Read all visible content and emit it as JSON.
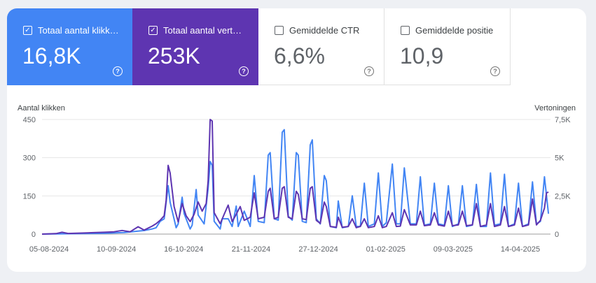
{
  "metrics": [
    {
      "label": "Totaal aantal klikk…",
      "value": "16,8K",
      "checked": true,
      "color": "#4285f4"
    },
    {
      "label": "Totaal aantal vert…",
      "value": "253K",
      "checked": true,
      "color": "#5e35b1"
    },
    {
      "label": "Gemiddelde CTR",
      "value": "6,6%",
      "checked": false,
      "color": "#ffffff"
    },
    {
      "label": "Gemiddelde positie",
      "value": "10,9",
      "checked": false,
      "color": "#ffffff"
    }
  ],
  "help_glyph": "?",
  "check_glyph": "✓",
  "chart_data": {
    "type": "line",
    "xlabel": "",
    "ylabel_left": "Aantal klikken",
    "ylabel_right": "Vertoningen",
    "left_axis": {
      "range": [
        0,
        450
      ],
      "ticks": [
        0,
        150,
        300,
        450
      ],
      "tick_labels": [
        "0",
        "150",
        "300",
        "450"
      ]
    },
    "right_axis": {
      "range": [
        0,
        7500
      ],
      "ticks": [
        0,
        2500,
        5000,
        7500
      ],
      "tick_labels": [
        "0",
        "2,5K",
        "5K",
        "7,5K"
      ]
    },
    "x_ticks": [
      "05-08-2024",
      "10-09-2024",
      "16-10-2024",
      "21-11-2024",
      "27-12-2024",
      "01-02-2025",
      "09-03-2025",
      "14-04-2025"
    ],
    "x_range": [
      "2024-08-05",
      "2025-04-16"
    ],
    "grid": true,
    "series": [
      {
        "name": "Totaal aantal klikken",
        "axis": "left",
        "color": "#4285f4",
        "points": [
          [
            "2024-08-05",
            0
          ],
          [
            "2024-08-15",
            1
          ],
          [
            "2024-08-25",
            2
          ],
          [
            "2024-09-05",
            3
          ],
          [
            "2024-09-15",
            6
          ],
          [
            "2024-09-25",
            14
          ],
          [
            "2024-09-29",
            20
          ],
          [
            "2024-10-01",
            25
          ],
          [
            "2024-10-03",
            50
          ],
          [
            "2024-10-05",
            60
          ],
          [
            "2024-10-07",
            190
          ],
          [
            "2024-10-08",
            125
          ],
          [
            "2024-10-11",
            25
          ],
          [
            "2024-10-12",
            40
          ],
          [
            "2024-10-14",
            145
          ],
          [
            "2024-10-15",
            80
          ],
          [
            "2024-10-18",
            20
          ],
          [
            "2024-10-19",
            35
          ],
          [
            "2024-10-21",
            175
          ],
          [
            "2024-10-22",
            75
          ],
          [
            "2024-10-25",
            40
          ],
          [
            "2024-10-27",
            180
          ],
          [
            "2024-10-28",
            285
          ],
          [
            "2024-10-29",
            270
          ],
          [
            "2024-10-30",
            50
          ],
          [
            "2024-11-02",
            20
          ],
          [
            "2024-11-03",
            60
          ],
          [
            "2024-11-06",
            60
          ],
          [
            "2024-11-08",
            30
          ],
          [
            "2024-11-10",
            110
          ],
          [
            "2024-11-11",
            30
          ],
          [
            "2024-11-14",
            90
          ],
          [
            "2024-11-17",
            30
          ],
          [
            "2024-11-19",
            230
          ],
          [
            "2024-11-21",
            50
          ],
          [
            "2024-11-24",
            45
          ],
          [
            "2024-11-26",
            310
          ],
          [
            "2024-11-27",
            320
          ],
          [
            "2024-11-29",
            60
          ],
          [
            "2024-12-01",
            55
          ],
          [
            "2024-12-03",
            400
          ],
          [
            "2024-12-04",
            410
          ],
          [
            "2024-12-06",
            70
          ],
          [
            "2024-12-08",
            55
          ],
          [
            "2024-12-10",
            320
          ],
          [
            "2024-12-11",
            310
          ],
          [
            "2024-12-13",
            50
          ],
          [
            "2024-12-15",
            45
          ],
          [
            "2024-12-17",
            350
          ],
          [
            "2024-12-18",
            370
          ],
          [
            "2024-12-20",
            60
          ],
          [
            "2024-12-22",
            40
          ],
          [
            "2024-12-24",
            230
          ],
          [
            "2024-12-25",
            210
          ],
          [
            "2024-12-27",
            30
          ],
          [
            "2024-12-30",
            25
          ],
          [
            "2024-12-31",
            130
          ],
          [
            "2025-01-02",
            25
          ],
          [
            "2025-01-05",
            30
          ],
          [
            "2025-01-07",
            150
          ],
          [
            "2025-01-09",
            30
          ],
          [
            "2025-01-11",
            30
          ],
          [
            "2025-01-13",
            200
          ],
          [
            "2025-01-15",
            30
          ],
          [
            "2025-01-18",
            40
          ],
          [
            "2025-01-20",
            240
          ],
          [
            "2025-01-22",
            30
          ],
          [
            "2025-01-24",
            45
          ],
          [
            "2025-01-27",
            275
          ],
          [
            "2025-01-29",
            40
          ],
          [
            "2025-01-31",
            40
          ],
          [
            "2025-02-02",
            260
          ],
          [
            "2025-02-05",
            40
          ],
          [
            "2025-02-08",
            40
          ],
          [
            "2025-02-10",
            225
          ],
          [
            "2025-02-12",
            35
          ],
          [
            "2025-02-15",
            40
          ],
          [
            "2025-02-17",
            200
          ],
          [
            "2025-02-19",
            40
          ],
          [
            "2025-02-22",
            35
          ],
          [
            "2025-02-24",
            190
          ],
          [
            "2025-02-26",
            30
          ],
          [
            "2025-03-01",
            40
          ],
          [
            "2025-03-03",
            190
          ],
          [
            "2025-03-05",
            30
          ],
          [
            "2025-03-08",
            35
          ],
          [
            "2025-03-10",
            195
          ],
          [
            "2025-03-12",
            30
          ],
          [
            "2025-03-15",
            30
          ],
          [
            "2025-03-17",
            240
          ],
          [
            "2025-03-19",
            35
          ],
          [
            "2025-03-22",
            40
          ],
          [
            "2025-03-24",
            235
          ],
          [
            "2025-03-26",
            30
          ],
          [
            "2025-03-29",
            40
          ],
          [
            "2025-03-31",
            200
          ],
          [
            "2025-04-02",
            30
          ],
          [
            "2025-04-05",
            40
          ],
          [
            "2025-04-07",
            205
          ],
          [
            "2025-04-09",
            40
          ],
          [
            "2025-04-11",
            50
          ],
          [
            "2025-04-13",
            225
          ],
          [
            "2025-04-15",
            80
          ]
        ]
      },
      {
        "name": "Totaal aantal vertoningen",
        "axis": "right",
        "color": "#5e35b1",
        "points": [
          [
            "2024-08-05",
            0
          ],
          [
            "2024-08-12",
            30
          ],
          [
            "2024-08-15",
            120
          ],
          [
            "2024-08-18",
            40
          ],
          [
            "2024-08-25",
            70
          ],
          [
            "2024-09-01",
            100
          ],
          [
            "2024-09-05",
            120
          ],
          [
            "2024-09-10",
            150
          ],
          [
            "2024-09-14",
            240
          ],
          [
            "2024-09-18",
            150
          ],
          [
            "2024-09-22",
            480
          ],
          [
            "2024-09-25",
            260
          ],
          [
            "2024-09-29",
            520
          ],
          [
            "2024-10-01",
            680
          ],
          [
            "2024-10-03",
            900
          ],
          [
            "2024-10-05",
            1200
          ],
          [
            "2024-10-06",
            2200
          ],
          [
            "2024-10-07",
            4500
          ],
          [
            "2024-10-08",
            4000
          ],
          [
            "2024-10-10",
            1800
          ],
          [
            "2024-10-12",
            800
          ],
          [
            "2024-10-14",
            2000
          ],
          [
            "2024-10-16",
            1200
          ],
          [
            "2024-10-18",
            820
          ],
          [
            "2024-10-20",
            1300
          ],
          [
            "2024-10-22",
            2100
          ],
          [
            "2024-10-24",
            1500
          ],
          [
            "2024-10-26",
            2000
          ],
          [
            "2024-10-27",
            3500
          ],
          [
            "2024-10-28",
            7500
          ],
          [
            "2024-10-29",
            7400
          ],
          [
            "2024-10-30",
            1400
          ],
          [
            "2024-11-02",
            680
          ],
          [
            "2024-11-04",
            1300
          ],
          [
            "2024-11-06",
            1900
          ],
          [
            "2024-11-08",
            820
          ],
          [
            "2024-11-10",
            1300
          ],
          [
            "2024-11-12",
            1800
          ],
          [
            "2024-11-14",
            900
          ],
          [
            "2024-11-17",
            1100
          ],
          [
            "2024-11-19",
            2700
          ],
          [
            "2024-11-21",
            1000
          ],
          [
            "2024-11-24",
            1100
          ],
          [
            "2024-11-26",
            2800
          ],
          [
            "2024-11-27",
            3000
          ],
          [
            "2024-11-29",
            1000
          ],
          [
            "2024-12-01",
            1100
          ],
          [
            "2024-12-03",
            3000
          ],
          [
            "2024-12-04",
            3100
          ],
          [
            "2024-12-06",
            1100
          ],
          [
            "2024-12-08",
            1000
          ],
          [
            "2024-12-10",
            2800
          ],
          [
            "2024-12-11",
            2600
          ],
          [
            "2024-12-13",
            1000
          ],
          [
            "2024-12-15",
            950
          ],
          [
            "2024-12-17",
            3000
          ],
          [
            "2024-12-18",
            3100
          ],
          [
            "2024-12-20",
            900
          ],
          [
            "2024-12-22",
            700
          ],
          [
            "2024-12-24",
            2100
          ],
          [
            "2024-12-25",
            1800
          ],
          [
            "2024-12-27",
            500
          ],
          [
            "2024-12-30",
            450
          ],
          [
            "2024-12-31",
            1100
          ],
          [
            "2025-01-02",
            450
          ],
          [
            "2025-01-05",
            500
          ],
          [
            "2025-01-07",
            1000
          ],
          [
            "2025-01-09",
            420
          ],
          [
            "2025-01-11",
            500
          ],
          [
            "2025-01-13",
            1000
          ],
          [
            "2025-01-15",
            420
          ],
          [
            "2025-01-18",
            500
          ],
          [
            "2025-01-20",
            1200
          ],
          [
            "2025-01-22",
            420
          ],
          [
            "2025-01-24",
            500
          ],
          [
            "2025-01-27",
            1400
          ],
          [
            "2025-01-29",
            500
          ],
          [
            "2025-01-31",
            520
          ],
          [
            "2025-02-02",
            1600
          ],
          [
            "2025-02-05",
            600
          ],
          [
            "2025-02-08",
            600
          ],
          [
            "2025-02-10",
            1500
          ],
          [
            "2025-02-12",
            550
          ],
          [
            "2025-02-15",
            600
          ],
          [
            "2025-02-17",
            1400
          ],
          [
            "2025-02-19",
            600
          ],
          [
            "2025-02-22",
            520
          ],
          [
            "2025-02-24",
            1500
          ],
          [
            "2025-02-26",
            550
          ],
          [
            "2025-03-01",
            600
          ],
          [
            "2025-03-03",
            1500
          ],
          [
            "2025-03-05",
            550
          ],
          [
            "2025-03-08",
            600
          ],
          [
            "2025-03-10",
            2000
          ],
          [
            "2025-03-12",
            500
          ],
          [
            "2025-03-15",
            600
          ],
          [
            "2025-03-17",
            2000
          ],
          [
            "2025-03-19",
            500
          ],
          [
            "2025-03-22",
            600
          ],
          [
            "2025-03-24",
            1800
          ],
          [
            "2025-03-26",
            500
          ],
          [
            "2025-03-29",
            600
          ],
          [
            "2025-03-31",
            1700
          ],
          [
            "2025-04-02",
            500
          ],
          [
            "2025-04-05",
            600
          ],
          [
            "2025-04-07",
            2300
          ],
          [
            "2025-04-09",
            600
          ],
          [
            "2025-04-11",
            900
          ],
          [
            "2025-04-13",
            1700
          ],
          [
            "2025-04-14",
            2700
          ],
          [
            "2025-04-15",
            2750
          ]
        ]
      }
    ]
  }
}
